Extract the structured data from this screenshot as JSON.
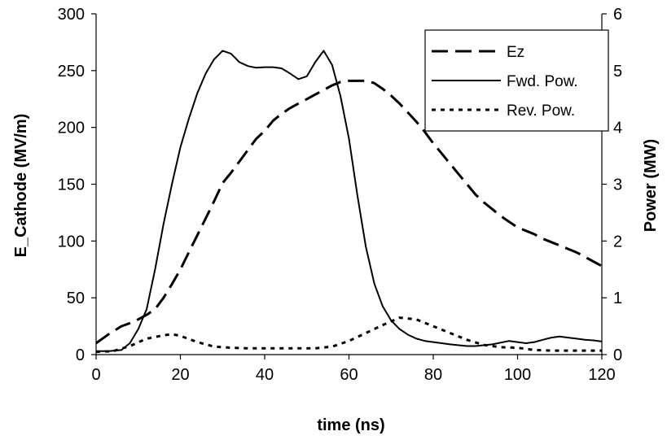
{
  "chart_data": {
    "type": "line",
    "title": "",
    "xlabel": "time (ns)",
    "ylabel_left": "E_Cathode (MV/m)",
    "ylabel_right": "Power (MW)",
    "xlim": [
      0,
      120
    ],
    "ylim_left": [
      0,
      300
    ],
    "ylim_right": [
      0,
      6
    ],
    "x_ticks": [
      "0",
      "20",
      "40",
      "60",
      "80",
      "100",
      "120"
    ],
    "y_left_ticks": [
      "0",
      "50",
      "100",
      "150",
      "200",
      "250",
      "300"
    ],
    "y_right_ticks": [
      "0",
      "1",
      "2",
      "3",
      "4",
      "5",
      "6"
    ],
    "grid": false,
    "legend_position": "top-right",
    "series": [
      {
        "name": "Ez",
        "axis": "left",
        "style": "dashed",
        "x": [
          0,
          3,
          6,
          9,
          12,
          14,
          16,
          18,
          20,
          22,
          24,
          26,
          28,
          30,
          32,
          34,
          36,
          38,
          40,
          42,
          44,
          46,
          48,
          50,
          52,
          54,
          56,
          58,
          60,
          62,
          64,
          66,
          68,
          70,
          72,
          74,
          76,
          78,
          80,
          82,
          84,
          86,
          88,
          90,
          92,
          94,
          96,
          98,
          100,
          102,
          104,
          106,
          108,
          110,
          112,
          114,
          116,
          118,
          120
        ],
        "y": [
          10,
          18,
          25,
          29,
          35,
          40,
          50,
          62,
          75,
          90,
          105,
          120,
          135,
          151,
          160,
          170,
          180,
          190,
          197,
          206,
          212,
          217,
          221,
          225,
          229,
          233,
          237,
          240,
          241,
          241,
          241,
          239,
          234,
          228,
          221,
          213,
          205,
          196,
          186,
          177,
          168,
          159,
          150,
          141,
          134,
          128,
          122,
          117,
          112,
          109,
          106,
          102,
          99,
          96,
          93,
          90,
          86,
          82,
          78
        ]
      },
      {
        "name": "Fwd. Pow.",
        "axis": "right",
        "style": "solid",
        "x": [
          0,
          3,
          6,
          8,
          10,
          12,
          14,
          16,
          18,
          20,
          22,
          24,
          26,
          28,
          30,
          32,
          34,
          36,
          38,
          40,
          42,
          44,
          46,
          48,
          50,
          52,
          54,
          56,
          58,
          60,
          62,
          64,
          66,
          68,
          70,
          72,
          74,
          76,
          78,
          80,
          84,
          88,
          90,
          94,
          98,
          100,
          102,
          104,
          106,
          108,
          110,
          112,
          114,
          116,
          118,
          120
        ],
        "y": [
          0.06,
          0.06,
          0.08,
          0.2,
          0.45,
          0.8,
          1.5,
          2.3,
          3.0,
          3.65,
          4.15,
          4.6,
          4.95,
          5.2,
          5.35,
          5.3,
          5.15,
          5.08,
          5.05,
          5.06,
          5.06,
          5.04,
          4.95,
          4.85,
          4.9,
          5.15,
          5.35,
          5.1,
          4.55,
          3.8,
          2.8,
          1.9,
          1.25,
          0.85,
          0.6,
          0.45,
          0.35,
          0.28,
          0.24,
          0.22,
          0.18,
          0.15,
          0.15,
          0.18,
          0.24,
          0.22,
          0.2,
          0.22,
          0.26,
          0.3,
          0.32,
          0.3,
          0.28,
          0.26,
          0.25,
          0.23
        ]
      },
      {
        "name": "Rev. Pow.",
        "axis": "right",
        "style": "dotted",
        "x": [
          0,
          4,
          8,
          12,
          16,
          18,
          20,
          24,
          28,
          32,
          36,
          40,
          44,
          48,
          52,
          56,
          60,
          64,
          68,
          72,
          76,
          80,
          84,
          88,
          92,
          96,
          100,
          104,
          108,
          112,
          116,
          120
        ],
        "y": [
          0.05,
          0.06,
          0.15,
          0.28,
          0.34,
          0.36,
          0.33,
          0.22,
          0.14,
          0.12,
          0.11,
          0.11,
          0.11,
          0.11,
          0.11,
          0.14,
          0.24,
          0.38,
          0.52,
          0.65,
          0.62,
          0.5,
          0.38,
          0.26,
          0.17,
          0.13,
          0.12,
          0.08,
          0.07,
          0.07,
          0.07,
          0.07
        ]
      }
    ]
  }
}
